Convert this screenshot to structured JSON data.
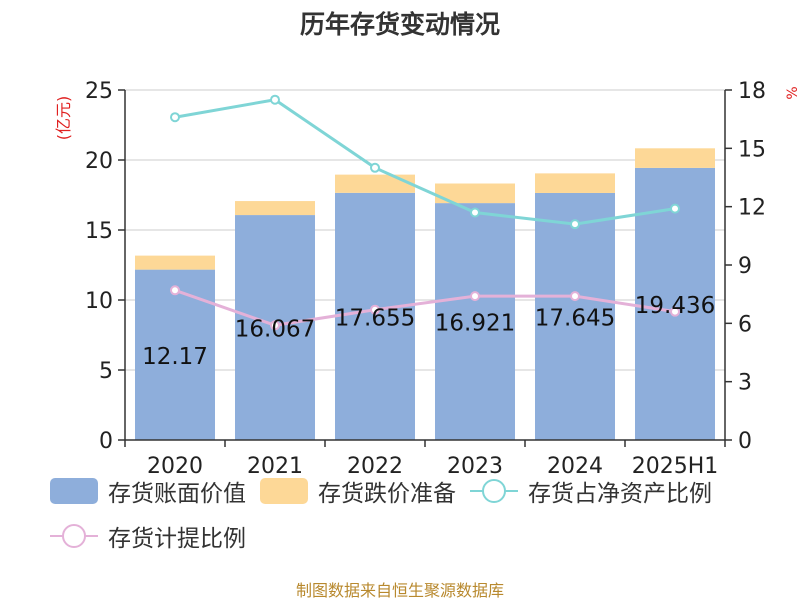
{
  "chart_data": {
    "type": "bar",
    "title": "历年存货变动情况",
    "ylabel_left": "(亿元)",
    "ylabel_right": "%",
    "categories": [
      "2020",
      "2021",
      "2022",
      "2023",
      "2024",
      "2025H1"
    ],
    "y_left": {
      "min": 0,
      "max": 25,
      "ticks": [
        0,
        5,
        10,
        15,
        20,
        25
      ]
    },
    "y_right": {
      "min": 0,
      "max": 18,
      "ticks": [
        0,
        3,
        6,
        9,
        12,
        15,
        18
      ]
    },
    "stacked": true,
    "grid": true,
    "legend_position": "bottom",
    "series": [
      {
        "name": "存货账面价值",
        "kind": "bar",
        "axis": "left",
        "color": "#8eaedb",
        "values": [
          12.17,
          16.067,
          17.655,
          16.921,
          17.645,
          19.436
        ],
        "labels": [
          "12.17",
          "16.067",
          "17.655",
          "16.921",
          "17.645",
          "19.436"
        ]
      },
      {
        "name": "存货跌价准备",
        "kind": "bar",
        "axis": "left",
        "color": "#fdd897",
        "values": [
          1.0,
          1.0,
          1.3,
          1.4,
          1.4,
          1.4
        ]
      },
      {
        "name": "存货占净资产比例",
        "kind": "line",
        "axis": "right",
        "color": "#7fd5d6",
        "values": [
          16.6,
          17.5,
          14.0,
          11.7,
          11.1,
          11.9
        ]
      },
      {
        "name": "存货计提比例",
        "kind": "line",
        "axis": "right",
        "color": "#e4b1d8",
        "values": [
          7.7,
          5.9,
          6.7,
          7.4,
          7.4,
          6.6
        ]
      }
    ]
  },
  "footer": "制图数据来自恒生聚源数据库"
}
